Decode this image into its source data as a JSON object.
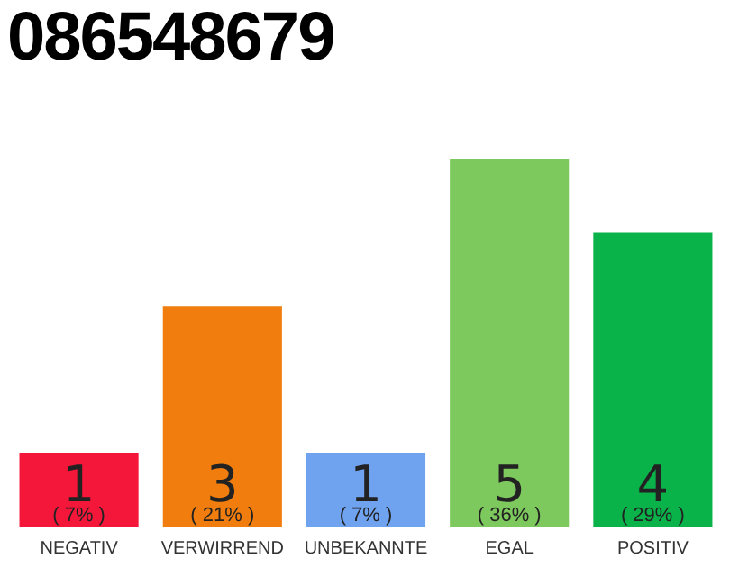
{
  "chart_data": {
    "type": "bar",
    "title": "086548679",
    "categories": [
      "NEGATIV",
      "VERWIRREND",
      "UNBEKANNTE",
      "EGAL",
      "POSITIV"
    ],
    "values": [
      1,
      3,
      1,
      5,
      4
    ],
    "colors": [
      "#f5173a",
      "#f07d0d",
      "#6fa3ef",
      "#7dc95e",
      "#0ab24a"
    ],
    "data_labels": true,
    "annotations": [
      {
        "text": "( 7% )",
        "x": "NEGATIV",
        "y": 0
      },
      {
        "text": "( 21% )",
        "x": "VERWIRREND",
        "y": 0
      },
      {
        "text": "( 7% )",
        "x": "UNBEKANNTE",
        "y": 0
      },
      {
        "text": "( 36% )",
        "x": "EGAL",
        "y": 0
      },
      {
        "text": "( 29% )",
        "x": "POSITIV",
        "y": 0
      }
    ],
    "tick_labels": "x",
    "grid": false,
    "legend": false
  }
}
